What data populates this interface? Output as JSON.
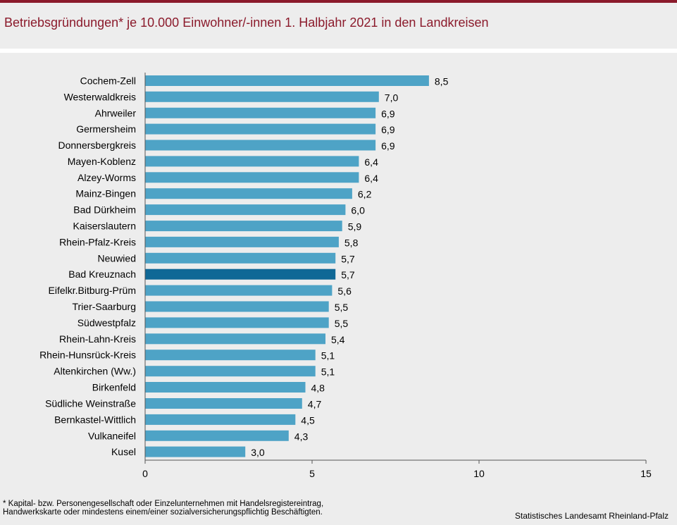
{
  "title": "Betriebsgründungen* je 10.000 Einwohner/-innen 1. Halbjahr 2021  in den Landkreisen",
  "footnote": "* Kapital- bzw. Personengesellschaft oder Einzelunternehmen mit Handelsregistereintrag,\nHandwerkskarte oder mindestens einem/einer sozialversicherungspflichtig Beschäftigten.",
  "source": "Statistisches Landesamt Rheinland-Pfalz",
  "colors": {
    "accent": "#8b1a2b",
    "bar": "#4ea3c6",
    "highlight_bar": "#0f6896",
    "background": "#ededed"
  },
  "chart_data": {
    "type": "bar",
    "orientation": "horizontal",
    "categories": [
      "Cochem-Zell",
      "Westerwaldkreis",
      "Ahrweiler",
      "Germersheim",
      "Donnersbergkreis",
      "Mayen-Koblenz",
      "Alzey-Worms",
      "Mainz-Bingen",
      "Bad Dürkheim",
      "Kaiserslautern",
      "Rhein-Pfalz-Kreis",
      "Neuwied",
      "Bad Kreuznach",
      "Eifelkr.Bitburg-Prüm",
      "Trier-Saarburg",
      "Südwestpfalz",
      "Rhein-Lahn-Kreis",
      "Rhein-Hunsrück-Kreis",
      "Altenkirchen (Ww.)",
      "Birkenfeld",
      "Südliche Weinstraße",
      "Bernkastel-Wittlich",
      "Vulkaneifel",
      "Kusel"
    ],
    "values": [
      8.5,
      7.0,
      6.9,
      6.9,
      6.9,
      6.4,
      6.4,
      6.2,
      6.0,
      5.9,
      5.8,
      5.7,
      5.7,
      5.6,
      5.5,
      5.5,
      5.4,
      5.1,
      5.1,
      4.8,
      4.7,
      4.5,
      4.3,
      3.0
    ],
    "value_labels": [
      "8,5",
      "7,0",
      "6,9",
      "6,9",
      "6,9",
      "6,4",
      "6,4",
      "6,2",
      "6,0",
      "5,9",
      "5,8",
      "5,7",
      "5,7",
      "5,6",
      "5,5",
      "5,5",
      "5,4",
      "5,1",
      "5,1",
      "4,8",
      "4,7",
      "4,5",
      "4,3",
      "3,0"
    ],
    "highlight": "Bad Kreuznach",
    "xlim": [
      0,
      15
    ],
    "xticks": [
      0,
      5,
      10,
      15
    ],
    "grid": false
  }
}
